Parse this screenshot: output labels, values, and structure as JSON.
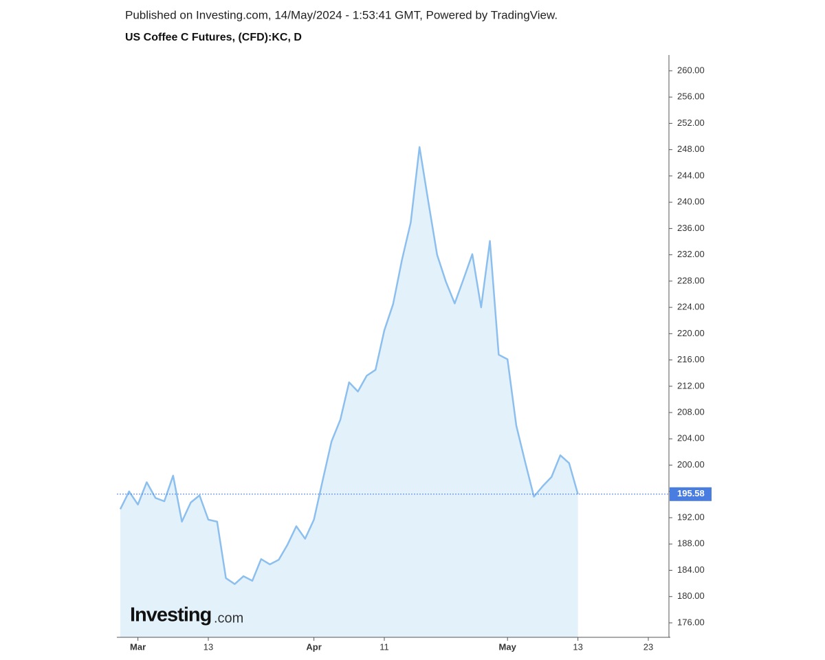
{
  "header": {
    "published": "Published on Investing.com, 14/May/2024 - 1:53:41 GMT, Powered by TradingView."
  },
  "chart_data": {
    "type": "area",
    "title": "US Coffee C Futures, (CFD):KC, D",
    "logo": {
      "brand": "Investing",
      "suffix": ".com"
    },
    "categories": [
      null,
      null,
      "Mar",
      null,
      null,
      null,
      null,
      null,
      null,
      null,
      "13",
      null,
      null,
      null,
      null,
      null,
      null,
      null,
      null,
      null,
      null,
      null,
      "Apr",
      null,
      null,
      null,
      null,
      null,
      null,
      null,
      "11",
      null,
      null,
      null,
      null,
      null,
      null,
      null,
      null,
      null,
      null,
      null,
      null,
      null,
      "May",
      null,
      null,
      null,
      null,
      null,
      null,
      null,
      "13",
      null,
      null,
      null,
      null,
      null,
      null,
      null,
      "23",
      null
    ],
    "series": [
      {
        "name": "KC",
        "color": "#8cbfee",
        "fill": "#e3f1fb",
        "values": [
          193.3,
          196.0,
          194.0,
          197.4,
          195.0,
          194.5,
          198.4,
          191.4,
          194.3,
          195.4,
          191.7,
          191.4,
          182.8,
          181.9,
          183.1,
          182.4,
          185.7,
          184.9,
          185.6,
          187.9,
          190.7,
          188.8,
          191.7,
          197.7,
          203.6,
          206.9,
          212.6,
          211.2,
          213.6,
          214.5,
          220.5,
          224.5,
          231.2,
          236.9,
          248.4,
          240.1,
          232.0,
          227.9,
          224.6,
          228.3,
          232.1,
          224.0,
          234.1,
          216.8,
          216.1,
          206.0,
          200.5,
          195.2,
          196.8,
          198.2,
          201.5,
          200.3,
          195.58,
          null,
          null,
          null,
          null,
          null,
          null,
          null,
          null,
          null
        ]
      }
    ],
    "last_price": 195.58,
    "last_price_color": "#4a7de0",
    "ylim": [
      173.8,
      262.4
    ],
    "yticks": [
      {
        "value": 176,
        "label": "176.00"
      },
      {
        "value": 180,
        "label": "180.00"
      },
      {
        "value": 184,
        "label": "184.00"
      },
      {
        "value": 188,
        "label": "188.00"
      },
      {
        "value": 192,
        "label": "192.00"
      },
      {
        "value": 196,
        "label": "196.00"
      },
      {
        "value": 200,
        "label": "200.00"
      },
      {
        "value": 204,
        "label": "204.00"
      },
      {
        "value": 208,
        "label": "208.00"
      },
      {
        "value": 212,
        "label": "212.00"
      },
      {
        "value": 216,
        "label": "216.00"
      },
      {
        "value": 220,
        "label": "220.00"
      },
      {
        "value": 224,
        "label": "224.00"
      },
      {
        "value": 228,
        "label": "228.00"
      },
      {
        "value": 232,
        "label": "232.00"
      },
      {
        "value": 236,
        "label": "236.00"
      },
      {
        "value": 240,
        "label": "240.00"
      },
      {
        "value": 244,
        "label": "244.00"
      },
      {
        "value": 248,
        "label": "248.00"
      },
      {
        "value": 252,
        "label": "252.00"
      },
      {
        "value": 256,
        "label": "256.00"
      },
      {
        "value": 260,
        "label": "260.00"
      }
    ]
  }
}
